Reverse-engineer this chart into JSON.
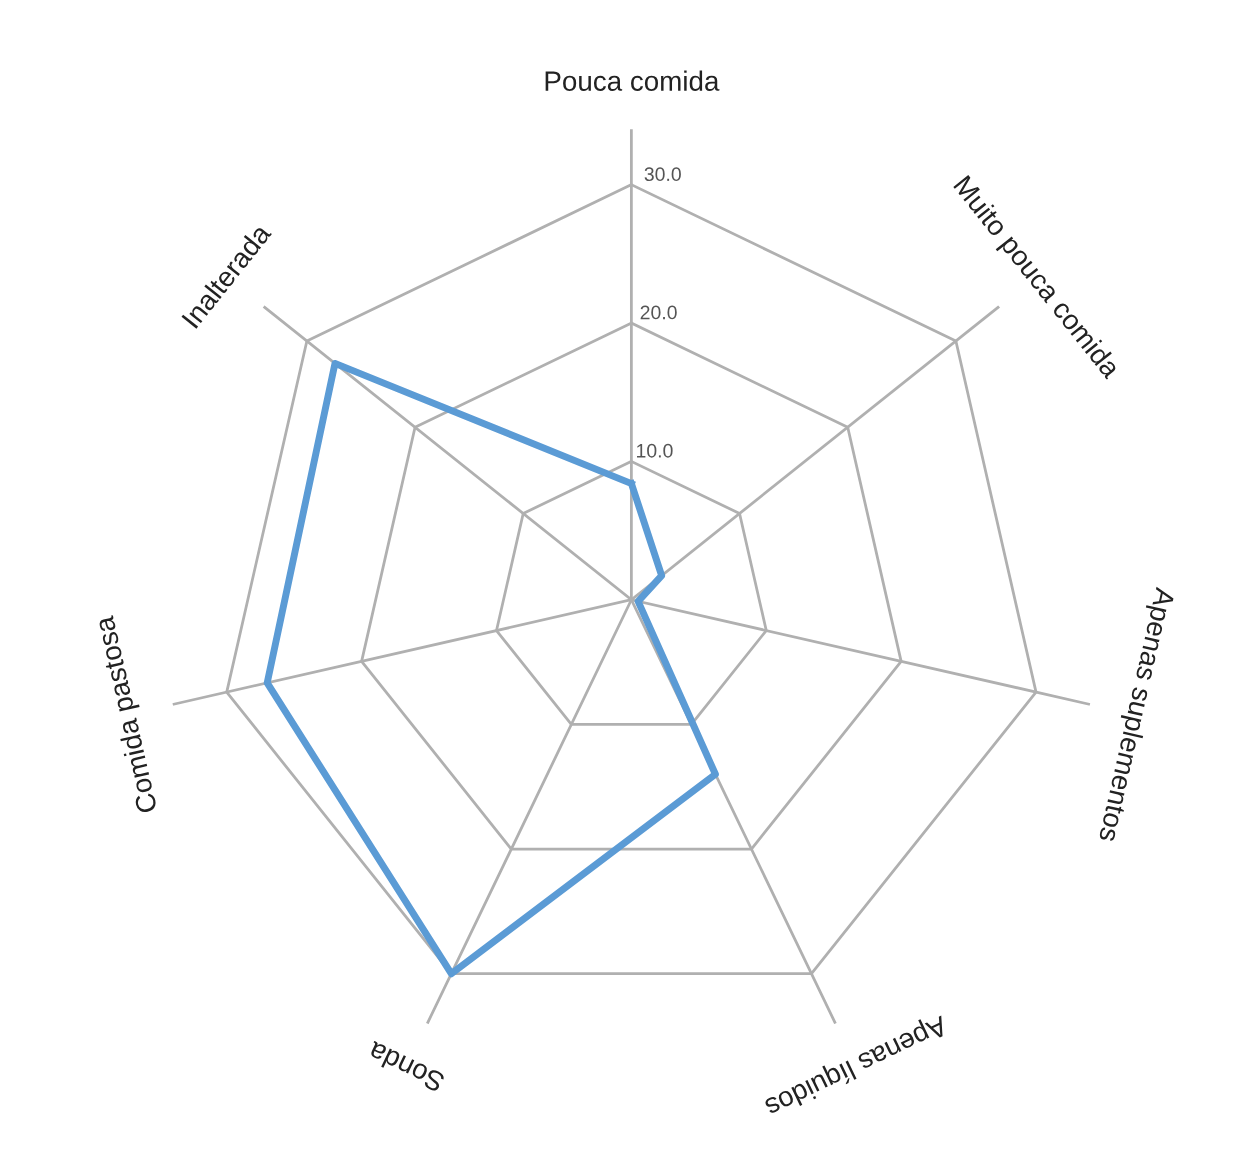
{
  "chart_data": {
    "type": "radar",
    "categories": [
      "Pouca comida",
      "Muito pouca comida",
      "Apenas suplementos",
      "Apenas líquidos",
      "Sonda",
      "Comida pastosa",
      "Inalterada"
    ],
    "series": [
      {
        "color": "#5b9bd5",
        "values": [
          8.4,
          2.8,
          0.5,
          14,
          30,
          27,
          27.4
        ]
      }
    ],
    "ylim": [
      0,
      34
    ],
    "yticks": [
      {
        "value": 10,
        "label": "10.0"
      },
      {
        "value": 20,
        "label": "20.0"
      },
      {
        "value": 30,
        "label": "30.0"
      }
    ],
    "grid": true,
    "marker": "none",
    "line_style": "solid",
    "legend": false
  }
}
